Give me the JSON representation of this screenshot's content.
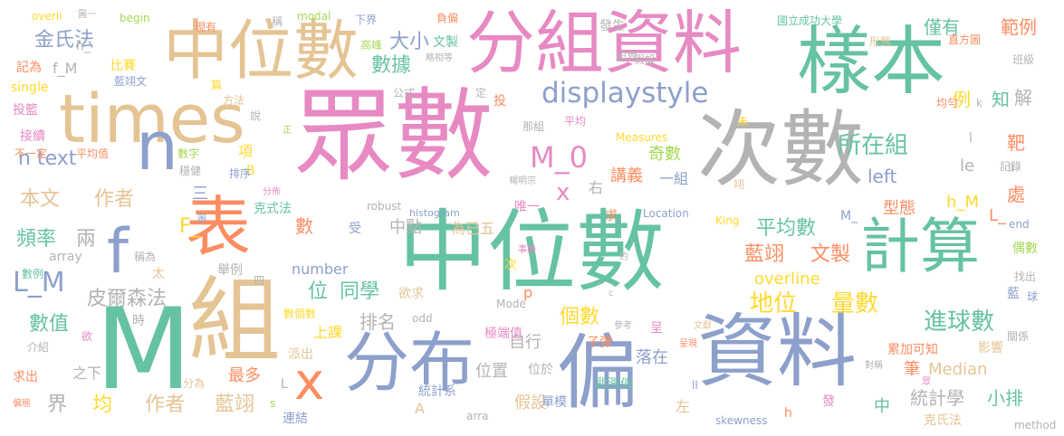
{
  "palette": {
    "green": "#66c2a5",
    "orange": "#fc8d62",
    "blue": "#8da0cb",
    "pink": "#e78ac3",
    "lime": "#a6d854",
    "yellow": "#ffd92f",
    "tan": "#e5c494",
    "gray": "#b3b3b3"
  },
  "words": [
    "眾數",
    "中位數",
    "中位數",
    "分組資料",
    "樣本",
    "次數",
    "計算",
    "資料",
    "分布",
    "偏",
    "組",
    "M",
    "表",
    "times",
    "n",
    "f",
    "x",
    "displaystyle",
    "M_0",
    "所在組",
    "進球數",
    "地位",
    "量數",
    "平均數",
    "藍翊",
    "文製",
    "金氏法",
    "數據",
    "大小",
    "n text",
    "本文",
    "作者",
    "頻率",
    "兩",
    "L_M",
    "皮爾森法",
    "位",
    "同學",
    "個數",
    "排名",
    "數值",
    "作者",
    "藍翊",
    "均",
    "界",
    "最多",
    "假設",
    "統計學",
    "小排",
    "Median",
    "overline",
    "left",
    "自行",
    "落在",
    "上課",
    "位置",
    "位於",
    "講義",
    "一組",
    "奇數",
    "number",
    "假設",
    "範例",
    "僅有",
    "例",
    "知",
    "解",
    "靶",
    "處",
    "型態",
    "h_M",
    "le",
    "L_",
    "偶數",
    "影響",
    "累加可知",
    "筆",
    "之下",
    "統計系",
    "單模",
    "觀測值",
    "極端值",
    "子彈",
    "呈",
    "數個數",
    "中點",
    "唯一",
    "為已五",
    "受",
    "求",
    "Location",
    "King",
    "method",
    "skewness",
    "arra",
    "odd",
    "Mode",
    "histogram",
    "robust",
    "克氏法",
    "克式法",
    "array",
    "數例",
    "稱為",
    "太",
    "舉例",
    "四",
    "B",
    "分佈",
    "排序",
    "穩健",
    "數字",
    "平均值",
    "不一定",
    "接續",
    "投籃",
    "single",
    "記為",
    "f_M",
    "比賽",
    "藍翊文",
    "篇",
    "方法",
    "說",
    "正",
    "公式",
    "定",
    "投",
    "那組",
    "平均",
    "Measures",
    "未",
    "均勻",
    "班級",
    "形態",
    "直方圖",
    "國立成功大學",
    "發生",
    "組界",
    "略相等",
    "文製",
    "高峰",
    "下界",
    "負偏",
    "稱",
    "modal",
    "begin",
    "現有",
    "overli",
    "圖一",
    "h_",
    "k",
    "翊",
    "end",
    "記錄",
    "找出",
    "關係",
    "對稱",
    "文獻",
    "呈現",
    "參考",
    "約",
    "c",
    "事勝",
    "欲求",
    "欲",
    "時",
    "介紹",
    "求出",
    "偏態",
    "連結",
    "派出",
    "中",
    "左",
    "右",
    "發",
    "h",
    "s",
    "L",
    "分為",
    "ll",
    "藍",
    "球",
    "眾",
    "三",
    "圖",
    "楊明宗",
    "F_",
    "M_",
    "p",
    "A",
    "次",
    "項",
    "數",
    "x",
    "l",
    "II"
  ]
}
